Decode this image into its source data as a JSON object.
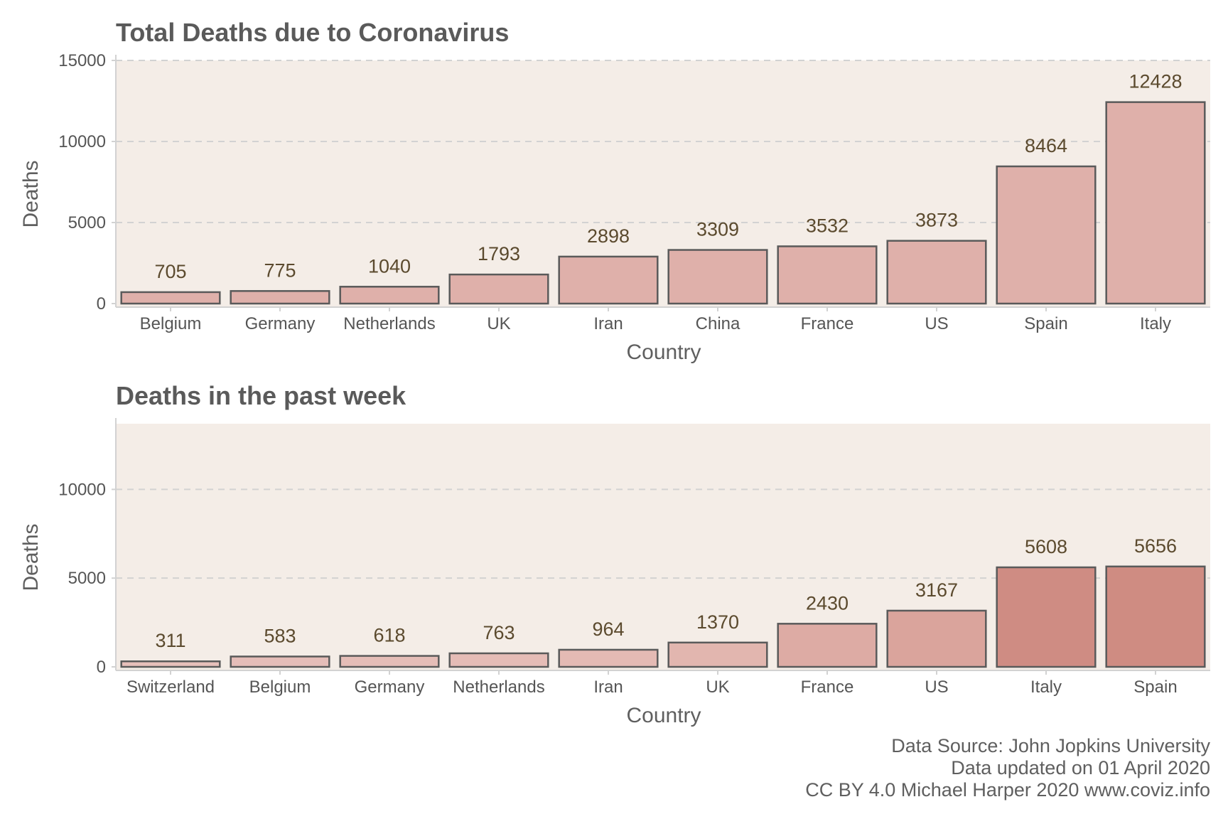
{
  "chart_data": [
    {
      "type": "bar",
      "title": "Total Deaths due to Coronavirus",
      "xlabel": "Country",
      "ylabel": "Deaths",
      "ylim": [
        0,
        15000
      ],
      "yticks": [
        0,
        5000,
        10000,
        15000
      ],
      "grid": "horizontal dashed",
      "categories": [
        "Belgium",
        "Germany",
        "Netherlands",
        "UK",
        "Iran",
        "China",
        "France",
        "US",
        "Spain",
        "Italy"
      ],
      "values": [
        705,
        775,
        1040,
        1793,
        2898,
        3309,
        3532,
        3873,
        8464,
        12428
      ],
      "bar_color": "#dfb0aa"
    },
    {
      "type": "bar",
      "title": "Deaths in the past week",
      "xlabel": "Country",
      "ylabel": "Deaths",
      "ylim": [
        0,
        13700
      ],
      "yticks": [
        0,
        5000,
        10000
      ],
      "grid": "horizontal dashed",
      "categories": [
        "Switzerland",
        "Belgium",
        "Germany",
        "Netherlands",
        "Iran",
        "UK",
        "France",
        "US",
        "Italy",
        "Spain"
      ],
      "values": [
        311,
        583,
        618,
        763,
        964,
        1370,
        2430,
        3167,
        5608,
        5656
      ],
      "color_scale": {
        "low": "#e8c3be",
        "high": "#cf8c82",
        "max_value": 5656
      }
    }
  ],
  "caption": {
    "line1": "Data Source: John Jopkins University",
    "line2": "Data updated on 01 April 2020",
    "line3": "CC BY 4.0 Michael Harper 2020 www.coviz.info"
  },
  "colors": {
    "panel_background": "#f4ede7",
    "bar_outline": "#5a5a5a",
    "grid": "#d2d2d2",
    "axis_line": "#d2d2d2"
  }
}
